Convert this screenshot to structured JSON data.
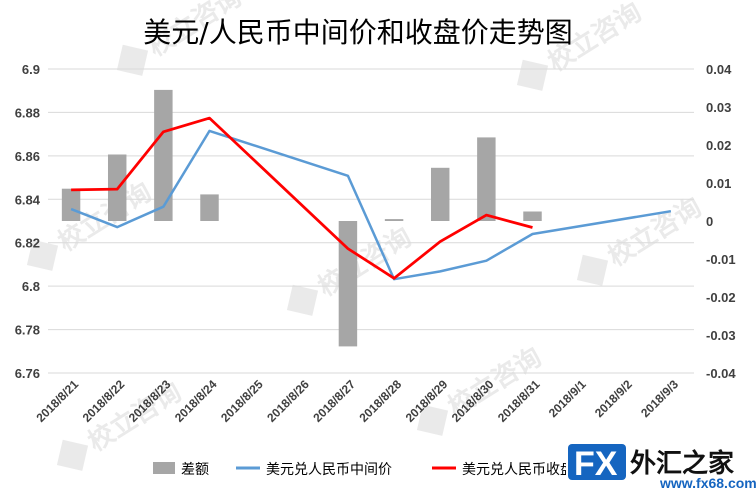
{
  "chart_data": {
    "type": "bar+line",
    "title": "美元/人民币中间价和收盘价走势图",
    "categories": [
      "2018/8/21",
      "2018/8/22",
      "2018/8/23",
      "2018/8/24",
      "2018/8/25",
      "2018/8/26",
      "2018/8/27",
      "2018/8/28",
      "2018/8/29",
      "2018/8/30",
      "2018/8/31",
      "2018/9/1",
      "2018/9/2",
      "2018/9/3"
    ],
    "left_axis": {
      "ticks": [
        "6.76",
        "6.78",
        "6.8",
        "6.82",
        "6.84",
        "6.86",
        "6.88",
        "6.9"
      ],
      "ylim": [
        6.76,
        6.9
      ]
    },
    "right_axis": {
      "ticks": [
        "-0.04",
        "-0.03",
        "-0.02",
        "-0.01",
        "0",
        "0.01",
        "0.02",
        "0.03",
        "0.04"
      ],
      "ylim": [
        -0.04,
        0.04
      ]
    },
    "series": [
      {
        "name": "差额",
        "type": "bar",
        "axis": "right",
        "color": "#a6a6a6",
        "values": [
          0.0085,
          0.0175,
          0.0345,
          0.007,
          null,
          null,
          -0.033,
          0.0005,
          0.014,
          0.022,
          0.0025,
          null,
          null,
          null
        ]
      },
      {
        "name": "美元兑人民币中间价",
        "type": "line",
        "axis": "left",
        "color": "#5b9bd5",
        "values": [
          6.8355,
          6.8272,
          6.8366,
          6.8715,
          null,
          null,
          6.8508,
          6.8032,
          6.8068,
          6.8117,
          6.824,
          null,
          null,
          6.8345
        ]
      },
      {
        "name": "美元兑人民币收盘价",
        "type": "line",
        "axis": "left",
        "color": "#ff0000",
        "values": [
          6.8443,
          6.8447,
          6.8711,
          6.8774,
          null,
          null,
          6.8173,
          6.8036,
          6.8205,
          6.8327,
          6.827,
          null,
          null,
          null
        ]
      }
    ],
    "legend": {
      "position": "bottom"
    },
    "grid": true
  },
  "legend_items": [
    {
      "label": "差额"
    },
    {
      "label": "美元兑人民币中间价"
    },
    {
      "label": "美元兑人民币收盘价"
    }
  ],
  "watermark": {
    "text": "校立咨询"
  },
  "logo": {
    "fx": "FX",
    "cn": "外汇之家",
    "url": "www.fx68.com",
    "color": "#1565c0"
  }
}
